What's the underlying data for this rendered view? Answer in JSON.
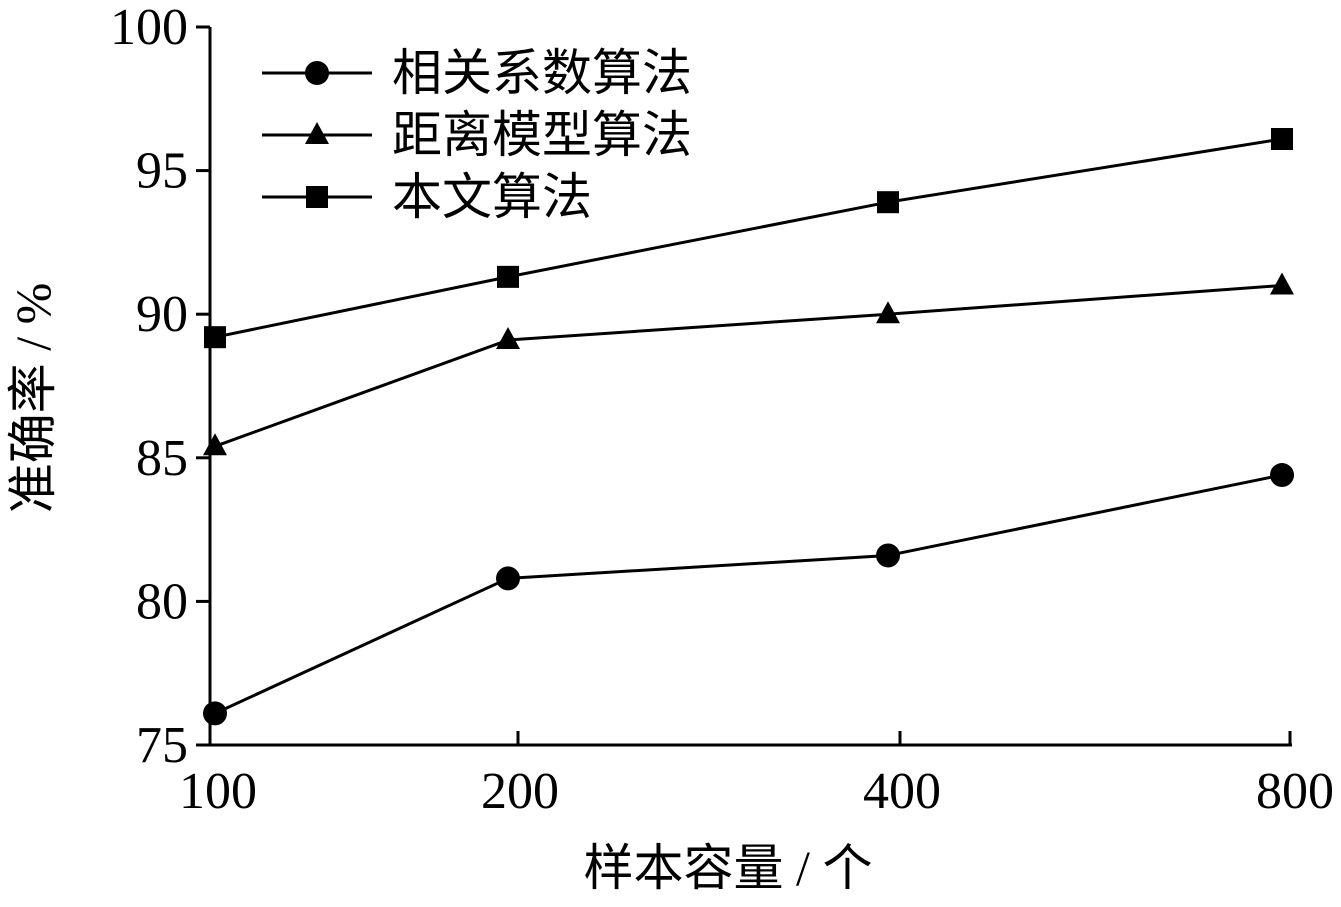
{
  "chart_data": {
    "type": "line",
    "x": [
      "100",
      "200",
      "400",
      "800"
    ],
    "xlabel": "样本容量 / 个",
    "ylabel": "准确率 / %",
    "ylim": [
      75,
      100
    ],
    "yticks": [
      "75",
      "80",
      "85",
      "90",
      "95",
      "100"
    ],
    "grid": false,
    "legend_position": "top-left",
    "series": [
      {
        "name": "相关系数算法",
        "marker": "circle",
        "values": [
          76.1,
          80.8,
          81.6,
          84.4
        ]
      },
      {
        "name": "距离模型算法",
        "marker": "triangle",
        "values": [
          85.4,
          89.1,
          90.0,
          91.0
        ]
      },
      {
        "name": "本文算法",
        "marker": "square",
        "values": [
          89.2,
          91.3,
          93.9,
          96.1
        ]
      }
    ],
    "colors": {
      "line": "#000000",
      "background": "#ffffff"
    }
  }
}
